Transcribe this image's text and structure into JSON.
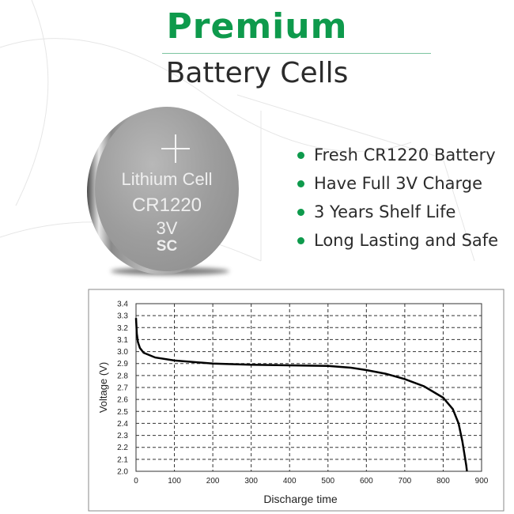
{
  "header": {
    "title": "Premium",
    "subtitle": "Battery Cells"
  },
  "colors": {
    "brand_green": "#0e9a4c",
    "text": "#2b2b2b",
    "curve": "#000000"
  },
  "battery": {
    "line1": "Lithium Cell",
    "line2": "CR1220",
    "line3": "3V",
    "line4": "SC",
    "icon": "plus-icon"
  },
  "features": [
    {
      "label": "Fresh CR1220 Battery"
    },
    {
      "label": "Have Full 3V Charge"
    },
    {
      "label": "3 Years Shelf Life"
    },
    {
      "label": "Long Lasting and Safe"
    }
  ],
  "chart_data": {
    "type": "line",
    "title": "",
    "xlabel": "Discharge time",
    "ylabel": "Voltage (V)",
    "xlim": [
      0,
      900
    ],
    "ylim": [
      2.0,
      3.4
    ],
    "xticks": [
      0,
      100,
      200,
      300,
      400,
      500,
      600,
      700,
      800,
      900
    ],
    "yticks": [
      2.0,
      2.1,
      2.2,
      2.3,
      2.4,
      2.5,
      2.6,
      2.7,
      2.8,
      2.9,
      3.0,
      3.1,
      3.2,
      3.3,
      3.4
    ],
    "grid": true,
    "series": [
      {
        "x": [
          0,
          2,
          5,
          10,
          20,
          50,
          100,
          200,
          300,
          400,
          500,
          560,
          600,
          650,
          700,
          750,
          800,
          825,
          840,
          850,
          860,
          862
        ],
        "y": [
          3.28,
          3.15,
          3.08,
          3.03,
          2.99,
          2.95,
          2.925,
          2.9,
          2.89,
          2.885,
          2.88,
          2.865,
          2.845,
          2.815,
          2.77,
          2.71,
          2.615,
          2.52,
          2.4,
          2.25,
          2.05,
          2.0
        ]
      }
    ]
  }
}
